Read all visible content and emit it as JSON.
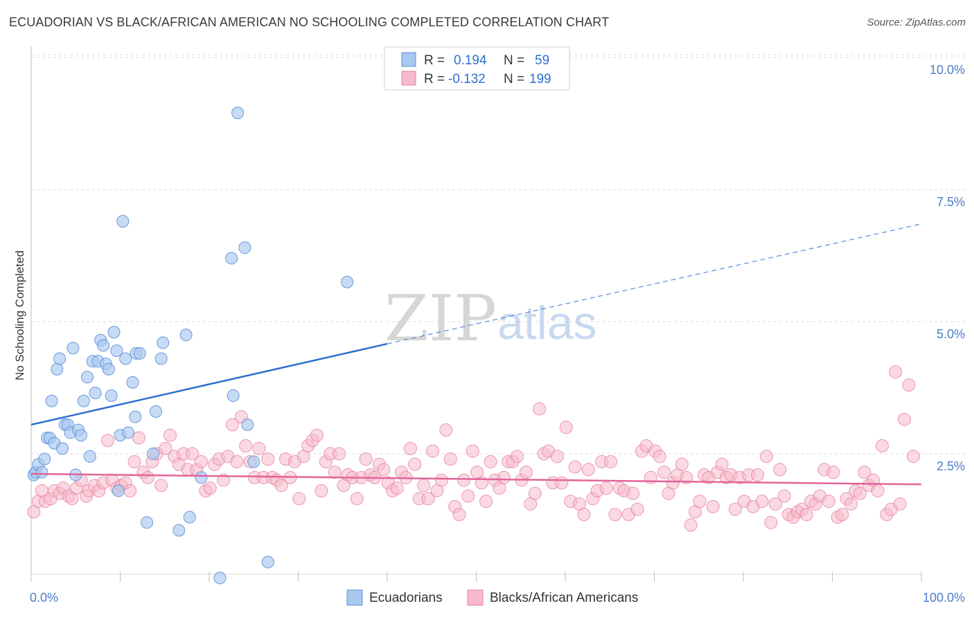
{
  "title": "ECUADORIAN VS BLACK/AFRICAN AMERICAN NO SCHOOLING COMPLETED CORRELATION CHART",
  "source": "Source: ZipAtlas.com",
  "watermark": {
    "zip": "ZIP",
    "atlas": "atlas"
  },
  "legend": {
    "rows": [
      {
        "r_label": "R =",
        "r_value": "0.194",
        "n_label": "N =",
        "n_value": "59",
        "color": "#a9c8ef",
        "stroke": "#5b8fd6"
      },
      {
        "r_label": "R =",
        "r_value": "-0.132",
        "n_label": "N =",
        "n_value": "199",
        "color": "#f7b9cb",
        "stroke": "#e57fa0"
      }
    ]
  },
  "bottom_legend": [
    {
      "label": "Ecuadorians",
      "color": "#a9c8ef",
      "stroke": "#5b8fd6"
    },
    {
      "label": "Blacks/African Americans",
      "color": "#f7b9cb",
      "stroke": "#e57fa0"
    }
  ],
  "colors": {
    "blue_fill": "#a9c8ef",
    "blue_stroke": "#5b8fd6",
    "blue_line": "#2e6fd1",
    "pink_fill": "#f7b9cb",
    "pink_stroke": "#e57fa0",
    "pink_line": "#e2649a",
    "grid": "#d9d9d9",
    "axis_text": "#4a7cc7"
  },
  "chart_data": {
    "type": "scatter",
    "title": "ECUADORIAN VS BLACK/AFRICAN AMERICAN NO SCHOOLING COMPLETED CORRELATION CHART",
    "xlabel": "",
    "ylabel": "No Schooling Completed",
    "x_tick_labels": [
      "0.0%",
      "100.0%"
    ],
    "y_tick_labels": [
      "2.5%",
      "5.0%",
      "7.5%",
      "10.0%"
    ],
    "y_ticks": [
      2.5,
      5.0,
      7.5,
      10.0
    ],
    "xlim": [
      0,
      100
    ],
    "ylim": [
      0,
      10.3
    ],
    "grid": "horizontal dashed",
    "legend_position": "top-center",
    "series": [
      {
        "name": "Ecuadorians",
        "r": 0.194,
        "n": 59,
        "trend": {
          "x": [
            0,
            40
          ],
          "y": [
            3.05,
            4.58
          ],
          "dashed_extension": {
            "x": [
              40,
              100
            ],
            "y": [
              4.58,
              6.85
            ]
          }
        },
        "points": [
          [
            0.3,
            2.1
          ],
          [
            0.5,
            2.15
          ],
          [
            0.8,
            2.3
          ],
          [
            1.2,
            2.15
          ],
          [
            1.5,
            2.4
          ],
          [
            1.8,
            2.8
          ],
          [
            2.1,
            2.8
          ],
          [
            2.3,
            3.5
          ],
          [
            2.6,
            2.7
          ],
          [
            2.9,
            4.1
          ],
          [
            3.2,
            4.3
          ],
          [
            3.5,
            2.6
          ],
          [
            3.8,
            3.05
          ],
          [
            4.1,
            3.05
          ],
          [
            4.4,
            2.9
          ],
          [
            4.7,
            4.5
          ],
          [
            5.0,
            2.1
          ],
          [
            5.3,
            2.95
          ],
          [
            5.6,
            2.85
          ],
          [
            5.9,
            3.5
          ],
          [
            6.3,
            3.95
          ],
          [
            6.6,
            2.45
          ],
          [
            6.9,
            4.25
          ],
          [
            7.2,
            3.65
          ],
          [
            7.5,
            4.25
          ],
          [
            7.8,
            4.65
          ],
          [
            8.1,
            4.55
          ],
          [
            8.4,
            4.2
          ],
          [
            8.7,
            4.1
          ],
          [
            9.0,
            3.6
          ],
          [
            9.3,
            4.8
          ],
          [
            9.6,
            4.45
          ],
          [
            9.8,
            1.8
          ],
          [
            10.0,
            2.85
          ],
          [
            10.3,
            6.9
          ],
          [
            10.6,
            4.3
          ],
          [
            10.9,
            2.9
          ],
          [
            11.4,
            3.85
          ],
          [
            11.8,
            4.4
          ],
          [
            11.7,
            3.2
          ],
          [
            12.2,
            4.4
          ],
          [
            13.0,
            1.2
          ],
          [
            13.7,
            2.5
          ],
          [
            14.0,
            3.3
          ],
          [
            14.6,
            4.3
          ],
          [
            14.8,
            4.6
          ],
          [
            16.6,
            1.05
          ],
          [
            17.4,
            4.75
          ],
          [
            17.8,
            1.3
          ],
          [
            19.1,
            2.05
          ],
          [
            21.2,
            0.15
          ],
          [
            22.5,
            6.2
          ],
          [
            22.7,
            3.6
          ],
          [
            23.2,
            8.95
          ],
          [
            24.0,
            6.4
          ],
          [
            24.3,
            3.05
          ],
          [
            25.0,
            2.35
          ],
          [
            26.6,
            0.45
          ],
          [
            35.5,
            5.75
          ]
        ]
      },
      {
        "name": "Blacks/African Americans",
        "r": -0.132,
        "n": 199,
        "trend": {
          "x": [
            0,
            100
          ],
          "y": [
            2.12,
            1.92
          ]
        },
        "points": [
          [
            0.3,
            1.4
          ],
          [
            0.8,
            1.6
          ],
          [
            1.2,
            1.8
          ],
          [
            1.6,
            1.6
          ],
          [
            2.2,
            1.65
          ],
          [
            2.6,
            1.8
          ],
          [
            3.2,
            1.75
          ],
          [
            3.6,
            1.85
          ],
          [
            4.2,
            1.7
          ],
          [
            4.6,
            1.65
          ],
          [
            5.1,
            1.85
          ],
          [
            5.6,
            2.0
          ],
          [
            6.2,
            1.7
          ],
          [
            6.5,
            1.8
          ],
          [
            7.1,
            1.9
          ],
          [
            7.6,
            1.8
          ],
          [
            8.1,
            1.95
          ],
          [
            8.6,
            2.75
          ],
          [
            9.1,
            2.0
          ],
          [
            9.6,
            1.85
          ],
          [
            10.1,
            1.9
          ],
          [
            10.6,
            1.95
          ],
          [
            11.1,
            1.8
          ],
          [
            11.6,
            2.35
          ],
          [
            12.1,
            2.8
          ],
          [
            12.6,
            2.15
          ],
          [
            13.1,
            2.05
          ],
          [
            13.6,
            2.35
          ],
          [
            14.1,
            2.5
          ],
          [
            14.6,
            1.9
          ],
          [
            15.1,
            2.6
          ],
          [
            15.6,
            2.85
          ],
          [
            16.1,
            2.45
          ],
          [
            16.6,
            2.3
          ],
          [
            17.1,
            2.5
          ],
          [
            17.6,
            2.2
          ],
          [
            18.1,
            2.5
          ],
          [
            18.6,
            2.2
          ],
          [
            19.1,
            2.35
          ],
          [
            19.6,
            1.8
          ],
          [
            20.1,
            1.85
          ],
          [
            20.6,
            2.3
          ],
          [
            21.1,
            2.4
          ],
          [
            21.6,
            2.0
          ],
          [
            22.1,
            2.45
          ],
          [
            22.6,
            3.05
          ],
          [
            23.1,
            2.35
          ],
          [
            23.6,
            3.2
          ],
          [
            24.1,
            2.65
          ],
          [
            24.6,
            2.35
          ],
          [
            25.1,
            2.05
          ],
          [
            25.6,
            2.6
          ],
          [
            26.1,
            2.05
          ],
          [
            26.6,
            2.4
          ],
          [
            27.1,
            2.05
          ],
          [
            27.6,
            2.0
          ],
          [
            28.1,
            1.9
          ],
          [
            28.6,
            2.4
          ],
          [
            29.1,
            2.05
          ],
          [
            29.6,
            2.35
          ],
          [
            30.1,
            1.65
          ],
          [
            30.6,
            2.45
          ],
          [
            31.1,
            2.65
          ],
          [
            31.6,
            2.75
          ],
          [
            32.1,
            2.85
          ],
          [
            32.6,
            1.8
          ],
          [
            33.1,
            2.35
          ],
          [
            33.6,
            2.5
          ],
          [
            34.1,
            2.15
          ],
          [
            34.6,
            2.5
          ],
          [
            35.1,
            1.9
          ],
          [
            35.6,
            2.1
          ],
          [
            36.1,
            2.05
          ],
          [
            36.6,
            1.65
          ],
          [
            37.1,
            2.05
          ],
          [
            37.6,
            2.4
          ],
          [
            38.1,
            2.1
          ],
          [
            38.6,
            2.05
          ],
          [
            39.1,
            2.3
          ],
          [
            39.6,
            2.2
          ],
          [
            40.1,
            1.95
          ],
          [
            40.6,
            1.8
          ],
          [
            41.1,
            1.85
          ],
          [
            41.6,
            2.15
          ],
          [
            42.1,
            2.05
          ],
          [
            42.6,
            2.6
          ],
          [
            43.1,
            2.3
          ],
          [
            43.6,
            1.65
          ],
          [
            44.1,
            1.9
          ],
          [
            44.6,
            1.65
          ],
          [
            45.1,
            2.55
          ],
          [
            45.6,
            1.8
          ],
          [
            46.1,
            2.0
          ],
          [
            46.6,
            2.95
          ],
          [
            47.1,
            2.4
          ],
          [
            47.6,
            1.5
          ],
          [
            48.1,
            1.35
          ],
          [
            48.6,
            2.0
          ],
          [
            49.1,
            1.7
          ],
          [
            49.6,
            2.55
          ],
          [
            50.1,
            2.15
          ],
          [
            50.6,
            1.95
          ],
          [
            51.1,
            1.6
          ],
          [
            51.6,
            2.35
          ],
          [
            52.1,
            2.0
          ],
          [
            52.6,
            1.85
          ],
          [
            53.1,
            2.05
          ],
          [
            53.6,
            2.35
          ],
          [
            54.1,
            2.35
          ],
          [
            54.6,
            2.45
          ],
          [
            55.1,
            2.0
          ],
          [
            55.6,
            2.15
          ],
          [
            56.1,
            1.55
          ],
          [
            56.6,
            1.75
          ],
          [
            57.1,
            3.35
          ],
          [
            57.6,
            2.5
          ],
          [
            58.1,
            2.55
          ],
          [
            58.6,
            1.95
          ],
          [
            59.1,
            2.45
          ],
          [
            59.6,
            1.95
          ],
          [
            60.1,
            3.0
          ],
          [
            60.6,
            1.6
          ],
          [
            61.1,
            2.25
          ],
          [
            61.6,
            1.55
          ],
          [
            62.1,
            1.35
          ],
          [
            62.6,
            2.2
          ],
          [
            63.1,
            1.65
          ],
          [
            63.6,
            1.8
          ],
          [
            64.1,
            2.35
          ],
          [
            64.6,
            1.85
          ],
          [
            65.1,
            2.35
          ],
          [
            65.6,
            1.35
          ],
          [
            66.1,
            1.85
          ],
          [
            66.6,
            1.8
          ],
          [
            67.1,
            1.35
          ],
          [
            67.6,
            1.75
          ],
          [
            68.1,
            1.45
          ],
          [
            68.6,
            2.55
          ],
          [
            69.1,
            2.65
          ],
          [
            69.6,
            2.05
          ],
          [
            70.1,
            2.55
          ],
          [
            70.6,
            2.45
          ],
          [
            71.1,
            2.15
          ],
          [
            71.6,
            1.75
          ],
          [
            72.1,
            1.95
          ],
          [
            72.6,
            2.1
          ],
          [
            73.1,
            2.3
          ],
          [
            73.6,
            2.05
          ],
          [
            74.1,
            1.15
          ],
          [
            74.6,
            1.4
          ],
          [
            75.1,
            1.6
          ],
          [
            75.6,
            2.1
          ],
          [
            76.1,
            2.05
          ],
          [
            76.6,
            1.5
          ],
          [
            77.1,
            2.15
          ],
          [
            77.6,
            2.3
          ],
          [
            78.1,
            2.05
          ],
          [
            78.6,
            2.1
          ],
          [
            79.1,
            1.45
          ],
          [
            79.6,
            2.05
          ],
          [
            80.1,
            1.6
          ],
          [
            80.6,
            2.1
          ],
          [
            81.1,
            1.5
          ],
          [
            81.6,
            2.1
          ],
          [
            82.1,
            1.6
          ],
          [
            82.6,
            2.45
          ],
          [
            83.1,
            1.2
          ],
          [
            83.6,
            1.55
          ],
          [
            84.1,
            2.2
          ],
          [
            84.6,
            1.7
          ],
          [
            85.1,
            1.35
          ],
          [
            85.6,
            1.3
          ],
          [
            86.1,
            1.4
          ],
          [
            86.6,
            1.45
          ],
          [
            87.1,
            1.35
          ],
          [
            87.6,
            1.6
          ],
          [
            88.1,
            1.55
          ],
          [
            88.6,
            1.7
          ],
          [
            89.1,
            2.2
          ],
          [
            89.6,
            1.6
          ],
          [
            90.1,
            2.15
          ],
          [
            90.6,
            1.3
          ],
          [
            91.1,
            1.35
          ],
          [
            91.6,
            1.65
          ],
          [
            92.1,
            1.55
          ],
          [
            92.6,
            1.8
          ],
          [
            93.1,
            1.75
          ],
          [
            93.6,
            2.15
          ],
          [
            94.1,
            1.9
          ],
          [
            94.6,
            2.0
          ],
          [
            95.1,
            1.8
          ],
          [
            95.6,
            2.65
          ],
          [
            96.1,
            1.35
          ],
          [
            96.6,
            1.45
          ],
          [
            97.1,
            4.05
          ],
          [
            97.6,
            1.55
          ],
          [
            98.1,
            3.15
          ],
          [
            98.6,
            3.8
          ],
          [
            99.1,
            2.45
          ]
        ]
      }
    ]
  }
}
